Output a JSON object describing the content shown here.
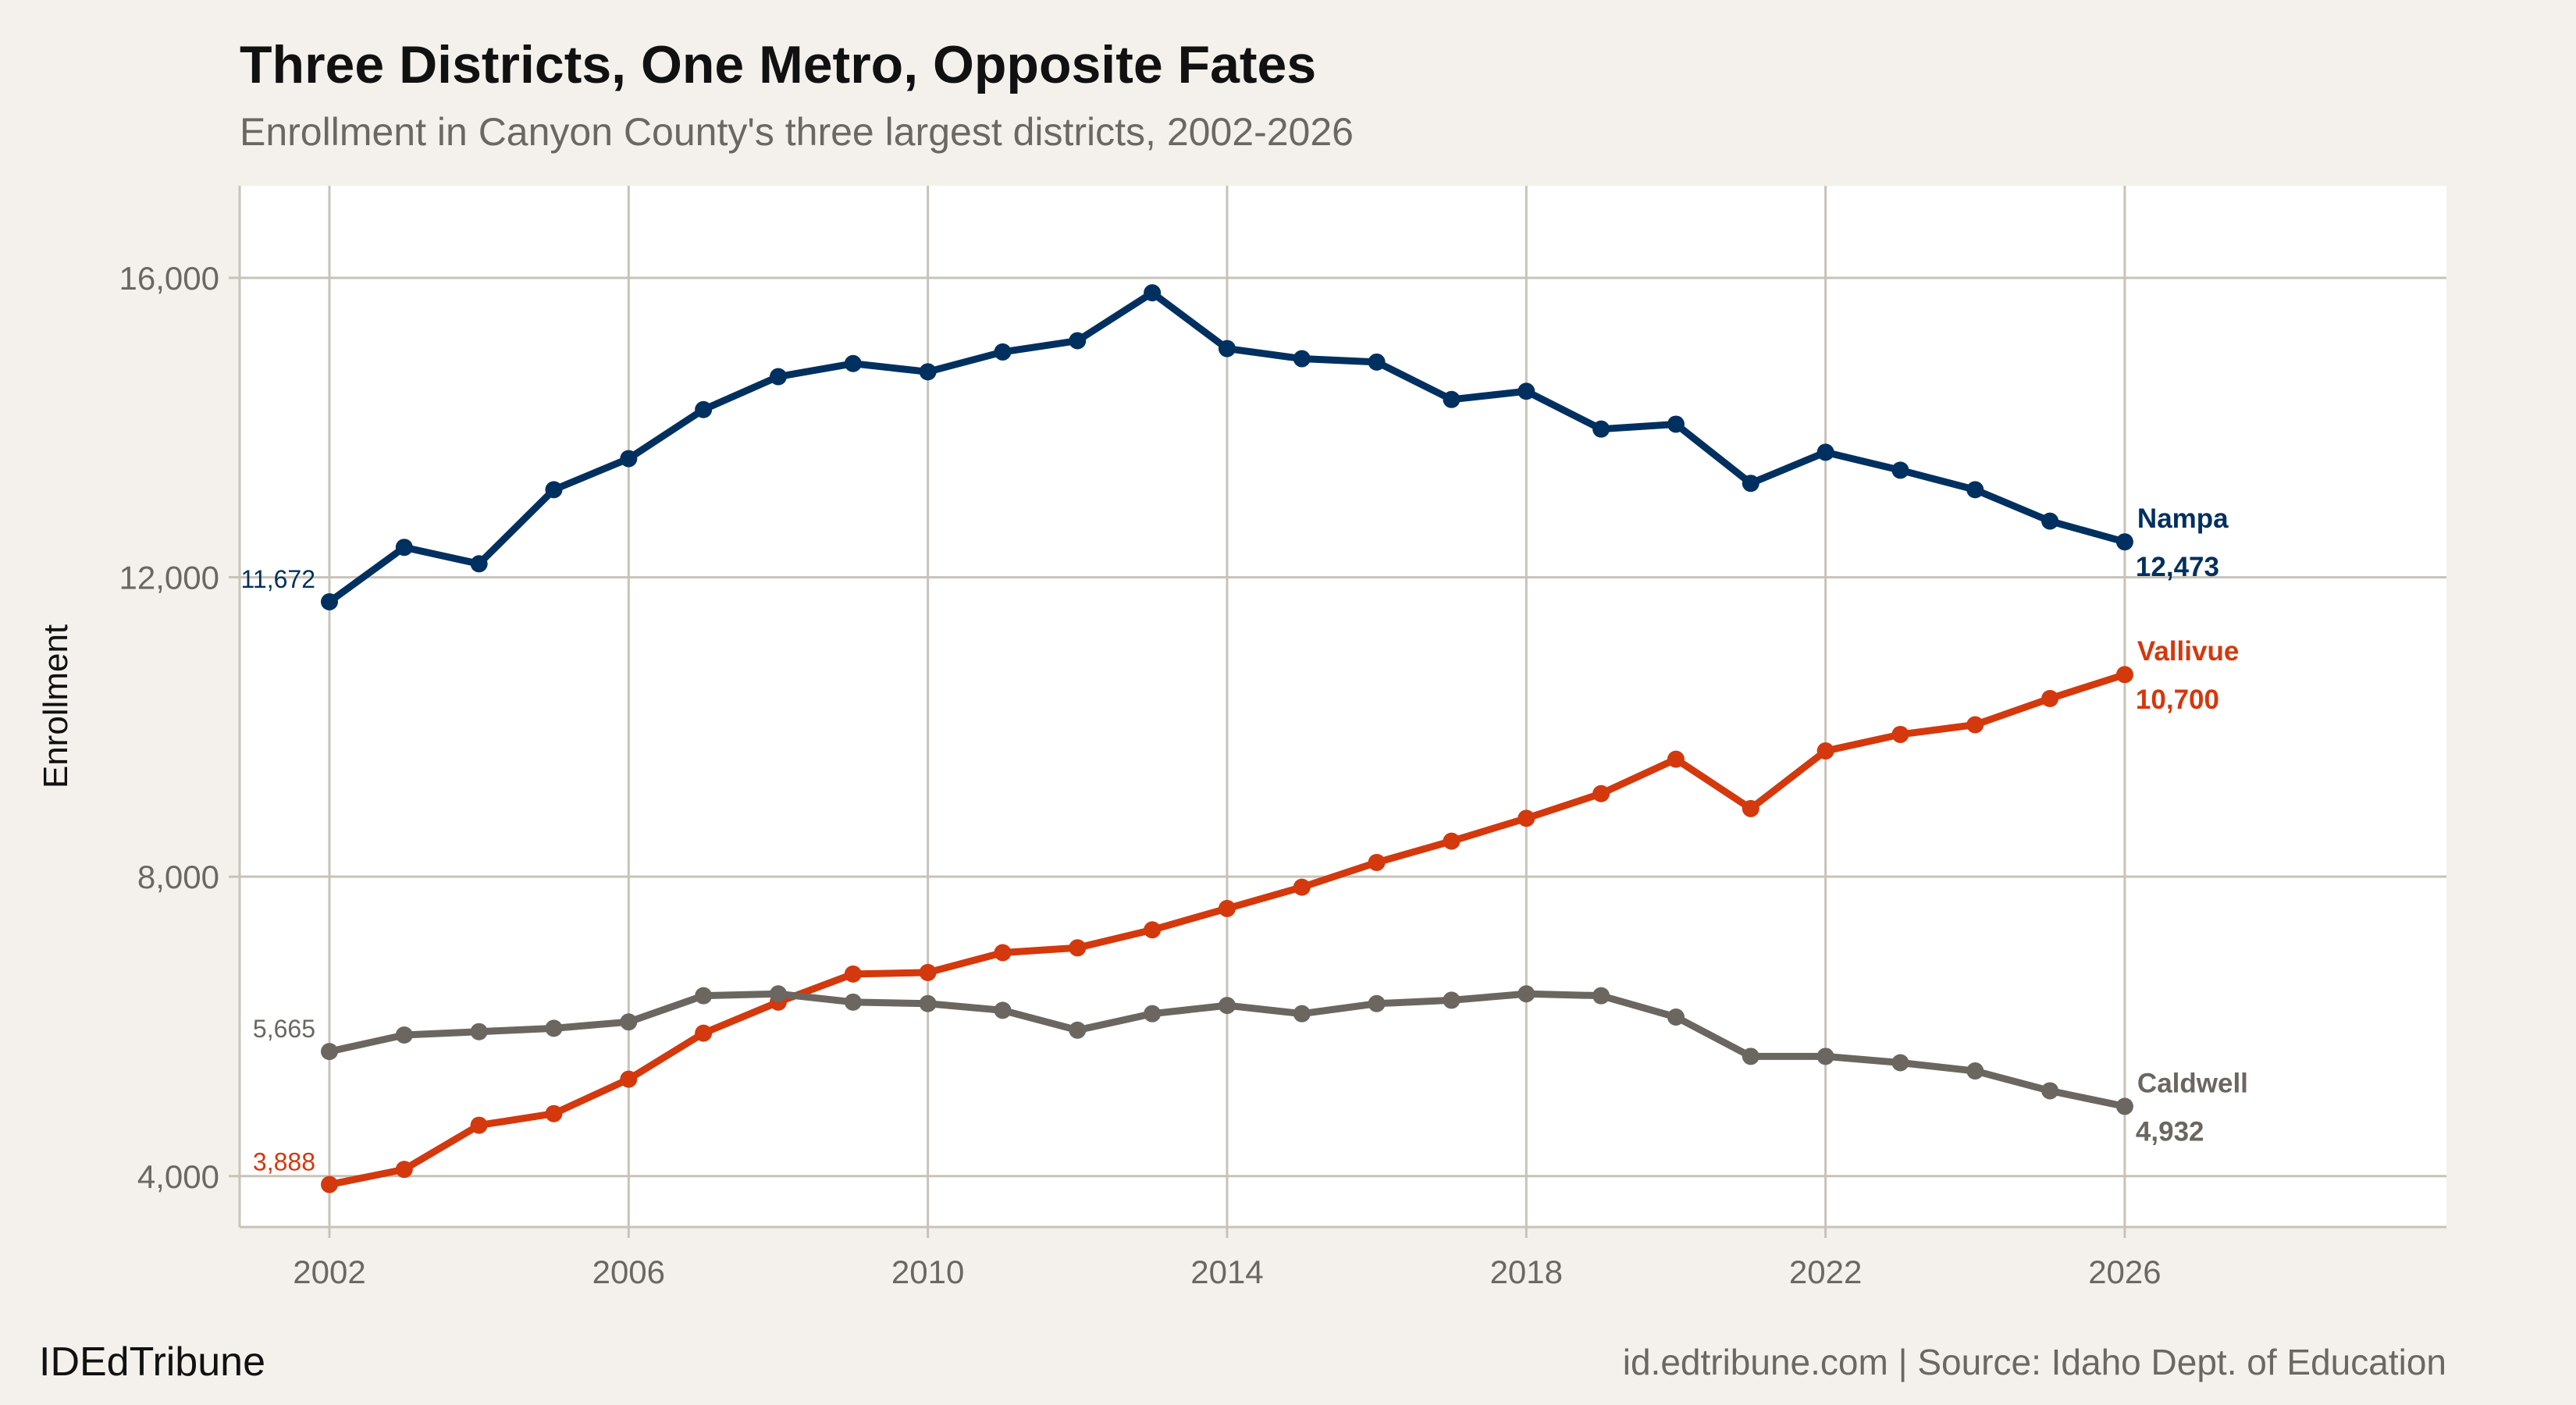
{
  "chart_data": {
    "type": "line",
    "title": "Three Districts, One Metro, Opposite Fates",
    "subtitle": "Enrollment in Canyon County's three largest districts, 2002-2026",
    "xlabel": "",
    "ylabel": "Enrollment",
    "xlim": [
      2000.8,
      2030.3
    ],
    "ylim": [
      3320,
      17230
    ],
    "xticks": [
      2002,
      2006,
      2010,
      2014,
      2018,
      2022,
      2026
    ],
    "yticks": [
      4000,
      8000,
      12000,
      16000
    ],
    "ytick_labels": [
      "4,000",
      "8,000",
      "12,000",
      "16,000"
    ],
    "grid": true,
    "x": [
      2002,
      2003,
      2004,
      2005,
      2006,
      2007,
      2008,
      2009,
      2010,
      2011,
      2012,
      2013,
      2014,
      2015,
      2016,
      2017,
      2018,
      2019,
      2020,
      2021,
      2022,
      2023,
      2024,
      2025,
      2026
    ],
    "series": [
      {
        "name": "Nampa",
        "color": "#00305f",
        "start_label": "11,672",
        "end_label": "12,473",
        "values": [
          11672,
          12400,
          12180,
          13170,
          13585,
          14240,
          14680,
          14855,
          14745,
          15010,
          15160,
          15800,
          15055,
          14920,
          14875,
          14375,
          14485,
          13980,
          14045,
          13255,
          13670,
          13430,
          13170,
          12750,
          12473
        ]
      },
      {
        "name": "Vallivue",
        "color": "#d4380d",
        "start_label": "3,888",
        "end_label": "10,700",
        "values": [
          3888,
          4090,
          4680,
          4835,
          5295,
          5910,
          6325,
          6700,
          6720,
          6985,
          7050,
          7290,
          7575,
          7860,
          8190,
          8475,
          8780,
          9110,
          9570,
          8910,
          9680,
          9900,
          10030,
          10380,
          10700
        ]
      },
      {
        "name": "Caldwell",
        "color": "#6b6660",
        "start_label": "5,665",
        "end_label": "4,932",
        "values": [
          5665,
          5885,
          5930,
          5975,
          6060,
          6410,
          6435,
          6325,
          6305,
          6215,
          5950,
          6170,
          6280,
          6170,
          6305,
          6350,
          6435,
          6410,
          6125,
          5600,
          5600,
          5515,
          5405,
          5140,
          4932
        ]
      }
    ]
  },
  "footer": {
    "brand": "IDEdTribune",
    "source": "id.edtribune.com | Source: Idaho Dept. of Education"
  }
}
